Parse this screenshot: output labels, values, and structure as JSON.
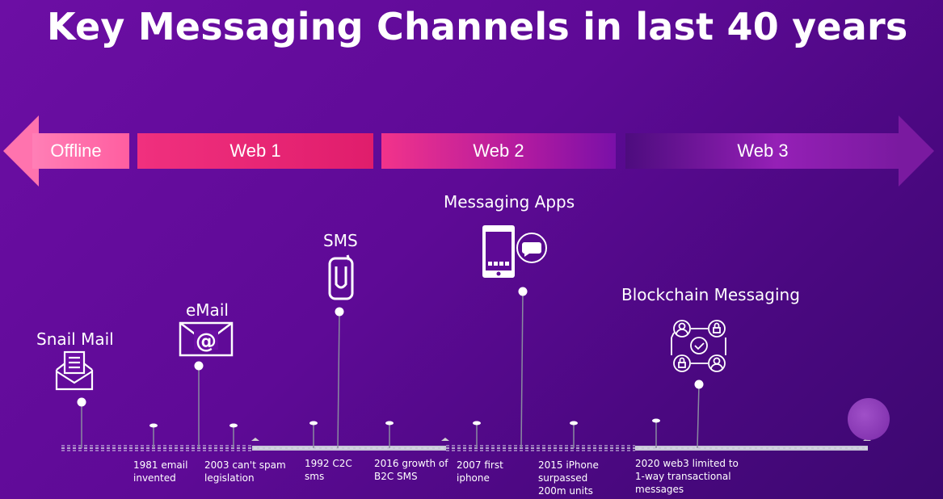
{
  "title": "Key Messaging Channels in last 40 years",
  "eras": [
    "Offline",
    "Web 1",
    "Web 2",
    "Web 3"
  ],
  "channels": {
    "snail_mail": "Snail Mail",
    "email": "eMail",
    "sms": "SMS",
    "messaging_apps": "Messaging Apps",
    "blockchain": "Blockchain Messaging"
  },
  "events": [
    "1981 email\ninvented",
    "2003 can't spam\nlegislation",
    "1992 C2C\nsms",
    "2016 growth of\nB2C SMS",
    "2007 first\niphone",
    "2015 iPhone\nsurpassed\n200m units",
    "2020 web3 limited to\n1-way transactional\nmessages"
  ],
  "icons": [
    "envelope-letter-icon",
    "email-at-icon",
    "phone-icon",
    "smartphone-chat-icon",
    "blockchain-network-icon"
  ]
}
